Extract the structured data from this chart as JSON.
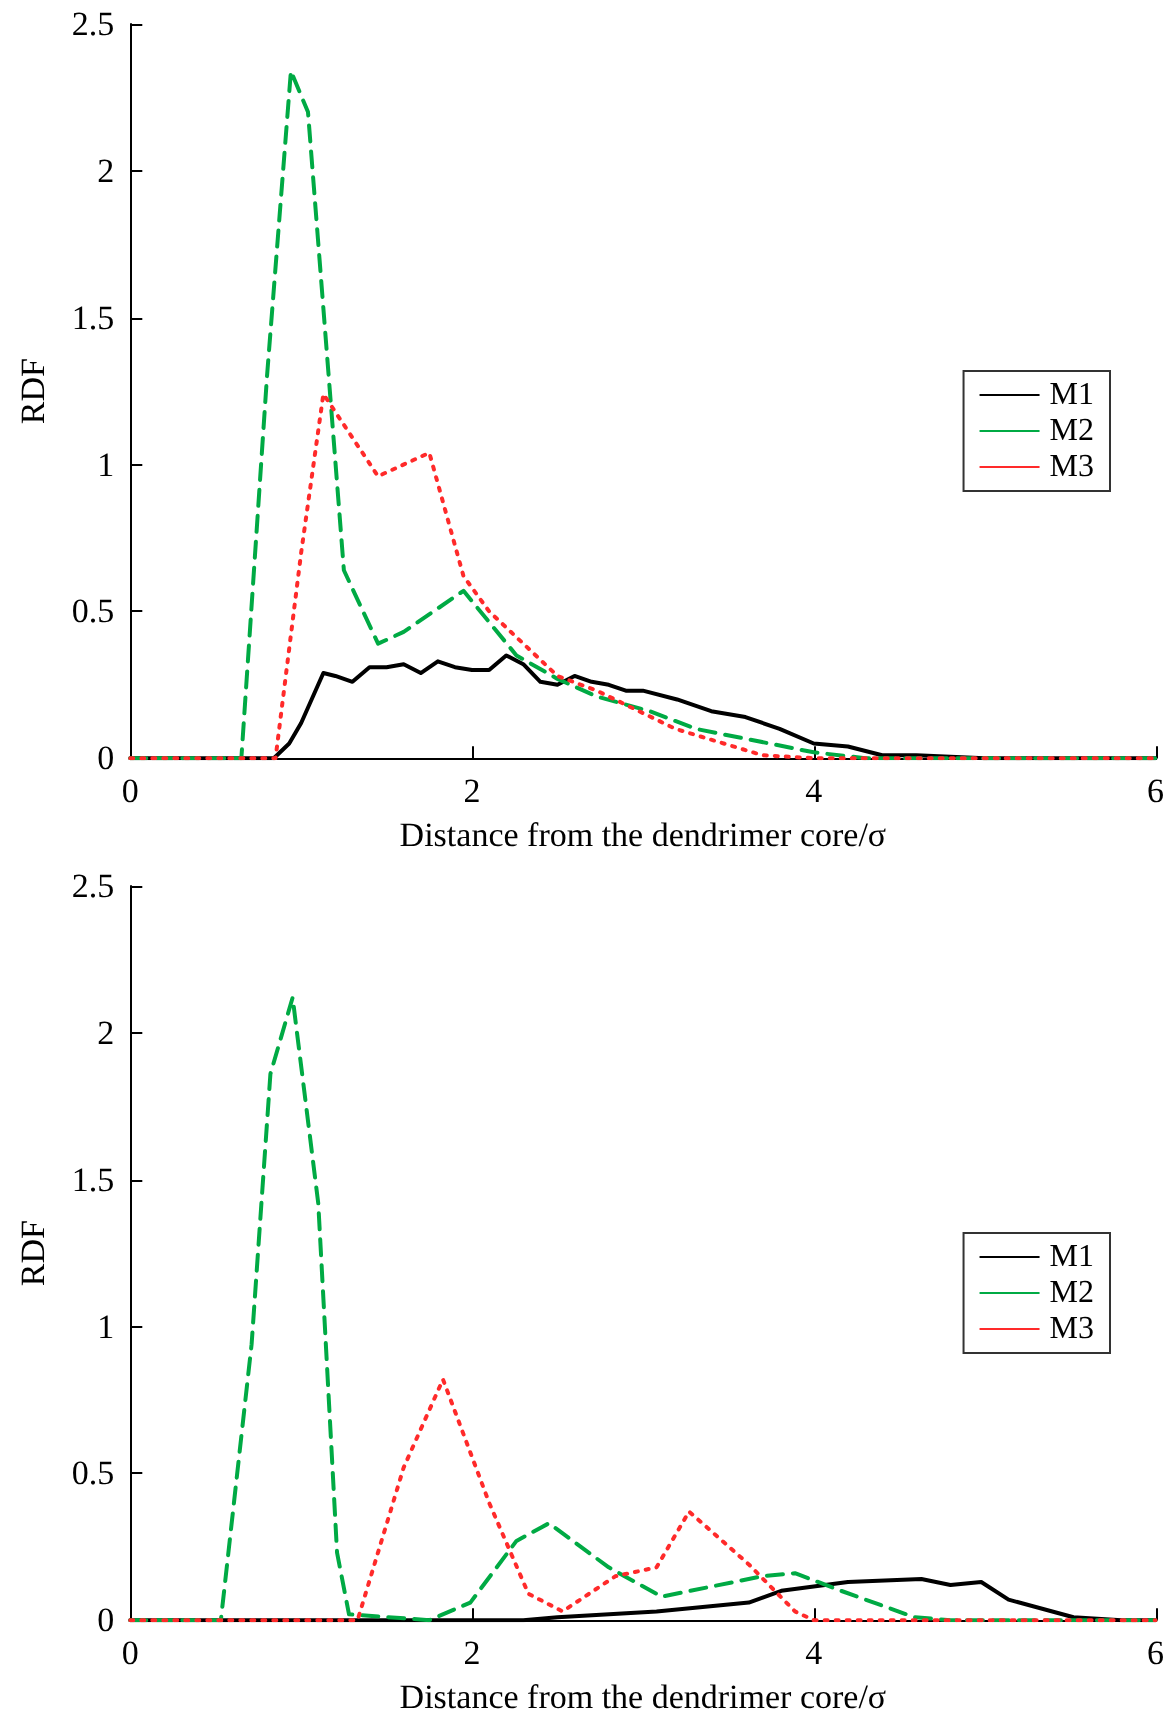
{
  "chart_data": [
    {
      "type": "line",
      "xlabel": "Distance from the dendrimer core/σ",
      "ylabel": "RDF",
      "xlim": [
        0,
        6
      ],
      "xticks": [
        0,
        2,
        4,
        6
      ],
      "ylim": [
        0,
        2.5
      ],
      "yticks": [
        0,
        0.5,
        1,
        1.5,
        2,
        2.5
      ],
      "grid": false,
      "legend": "right",
      "marker": "none",
      "series": [
        {
          "name": "M1",
          "color": "#000000",
          "line_style": "solid",
          "x": [
            0,
            0.84,
            0.93,
            1.0,
            1.13,
            1.2,
            1.3,
            1.4,
            1.5,
            1.6,
            1.7,
            1.8,
            1.9,
            2.0,
            2.1,
            2.2,
            2.3,
            2.4,
            2.5,
            2.6,
            2.7,
            2.8,
            2.9,
            3.0,
            3.2,
            3.4,
            3.6,
            3.8,
            4.0,
            4.2,
            4.4,
            4.6,
            5.0,
            6
          ],
          "values": [
            0,
            0,
            0.05,
            0.12,
            0.29,
            0.28,
            0.26,
            0.31,
            0.31,
            0.32,
            0.29,
            0.33,
            0.31,
            0.3,
            0.3,
            0.35,
            0.32,
            0.26,
            0.25,
            0.28,
            0.26,
            0.25,
            0.23,
            0.23,
            0.2,
            0.16,
            0.14,
            0.1,
            0.05,
            0.04,
            0.01,
            0.01,
            0,
            0
          ]
        },
        {
          "name": "M2",
          "color": "#00aa44",
          "line_style": "dashed",
          "x": [
            0,
            0.65,
            0.8,
            0.94,
            1.04,
            1.25,
            1.45,
            1.6,
            1.95,
            2.26,
            2.5,
            2.73,
            3.04,
            3.31,
            4.0,
            4.3,
            6
          ],
          "values": [
            0,
            0,
            1.3,
            2.34,
            2.2,
            0.64,
            0.39,
            0.43,
            0.57,
            0.35,
            0.27,
            0.21,
            0.16,
            0.1,
            0.02,
            0,
            0
          ]
        },
        {
          "name": "M3",
          "color": "#ff2a2a",
          "line_style": "dotted",
          "x": [
            0,
            0.85,
            1.0,
            1.13,
            1.45,
            1.75,
            1.95,
            2.1,
            2.5,
            2.73,
            3.19,
            3.7,
            4.0,
            6
          ],
          "values": [
            0,
            0,
            0.7,
            1.24,
            0.96,
            1.04,
            0.62,
            0.5,
            0.28,
            0.23,
            0.1,
            0.01,
            0,
            0
          ]
        }
      ]
    },
    {
      "type": "line",
      "xlabel": "Distance from the dendrimer core/σ",
      "ylabel": "RDF",
      "xlim": [
        0,
        6
      ],
      "xticks": [
        0,
        2,
        4,
        6
      ],
      "ylim": [
        0,
        2.5
      ],
      "yticks": [
        0,
        0.5,
        1,
        1.5,
        2,
        2.5
      ],
      "grid": false,
      "legend": "right",
      "marker": "none",
      "series": [
        {
          "name": "M1",
          "color": "#000000",
          "line_style": "solid",
          "x": [
            0,
            2.3,
            2.5,
            3.08,
            3.62,
            3.81,
            4.2,
            4.63,
            4.8,
            4.98,
            5.14,
            5.52,
            5.8,
            6
          ],
          "values": [
            0,
            0,
            0.01,
            0.03,
            0.06,
            0.1,
            0.13,
            0.14,
            0.12,
            0.13,
            0.07,
            0.01,
            0,
            0
          ]
        },
        {
          "name": "M2",
          "color": "#00aa44",
          "line_style": "dashed",
          "x": [
            0,
            0.53,
            0.71,
            0.82,
            0.95,
            1.1,
            1.21,
            1.28,
            1.75,
            1.99,
            2.26,
            2.45,
            2.8,
            3.11,
            3.7,
            3.89,
            4.16,
            4.59,
            4.8,
            6
          ],
          "values": [
            0,
            0,
            0.94,
            1.86,
            2.12,
            1.42,
            0.23,
            0.02,
            0,
            0.06,
            0.27,
            0.33,
            0.18,
            0.08,
            0.15,
            0.16,
            0.1,
            0.01,
            0,
            0
          ]
        },
        {
          "name": "M3",
          "color": "#ff2a2a",
          "line_style": "dotted",
          "x": [
            0,
            1.33,
            1.6,
            1.83,
            2.1,
            2.33,
            2.53,
            2.84,
            3.08,
            3.27,
            3.62,
            3.89,
            4.0,
            6
          ],
          "values": [
            0,
            0,
            0.52,
            0.82,
            0.4,
            0.09,
            0.03,
            0.15,
            0.18,
            0.37,
            0.19,
            0.03,
            0,
            0
          ]
        }
      ]
    }
  ]
}
